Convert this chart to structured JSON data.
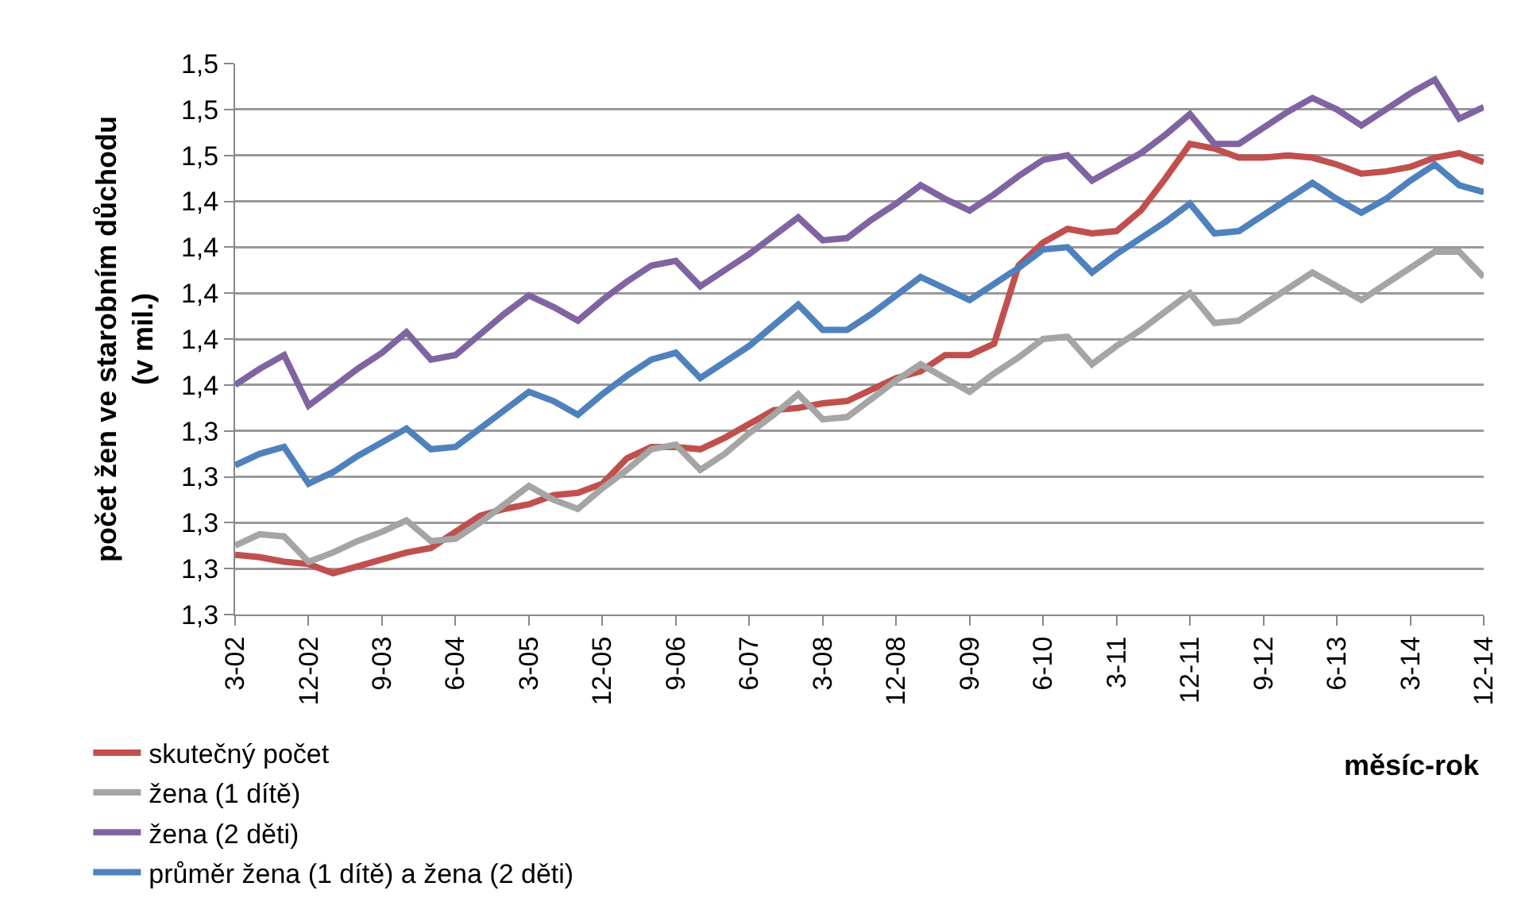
{
  "chart_data": {
    "type": "line",
    "xlabel": "měsíc-rok",
    "ylabel": "počet žen ve starobním důchodu\n(v mil.)",
    "categories": [
      "3-02",
      null,
      null,
      "12-02",
      null,
      null,
      "9-03",
      null,
      null,
      "6-04",
      null,
      null,
      "3-05",
      null,
      null,
      "12-05",
      null,
      null,
      "9-06",
      null,
      null,
      "6-07",
      null,
      null,
      "3-08",
      null,
      null,
      "12-08",
      null,
      null,
      "9-09",
      null,
      null,
      "6-10",
      null,
      null,
      "3-11",
      null,
      null,
      "12-11",
      null,
      null,
      "9-12",
      null,
      null,
      "6-13",
      null,
      null,
      "3-14",
      null,
      null,
      "12-14"
    ],
    "series": [
      {
        "name": "skutečný počet",
        "color": "#c0504d",
        "values": [
          1.286,
          1.285,
          1.283,
          1.282,
          1.278,
          1.281,
          1.284,
          1.287,
          1.289,
          1.296,
          1.303,
          1.306,
          1.308,
          1.312,
          1.313,
          1.317,
          1.328,
          1.333,
          1.333,
          1.332,
          1.337,
          1.343,
          1.349,
          1.35,
          1.352,
          1.353,
          1.358,
          1.363,
          1.366,
          1.373,
          1.373,
          1.378,
          1.412,
          1.422,
          1.428,
          1.426,
          1.427,
          1.436,
          1.45,
          1.465,
          1.463,
          1.459,
          1.459,
          1.46,
          1.459,
          1.456,
          1.452,
          1.453,
          1.455,
          1.459,
          1.461,
          1.457
        ]
      },
      {
        "name": "žena (1 dítě)",
        "color": "#a5a5a5",
        "values": [
          1.29,
          1.295,
          1.294,
          1.283,
          1.287,
          1.292,
          1.296,
          1.301,
          1.292,
          1.293,
          1.3,
          1.308,
          1.316,
          1.31,
          1.306,
          1.315,
          1.323,
          1.332,
          1.334,
          1.323,
          1.33,
          1.339,
          1.347,
          1.356,
          1.345,
          1.346,
          1.354,
          1.362,
          1.369,
          1.363,
          1.357,
          1.365,
          1.372,
          1.38,
          1.381,
          1.369,
          1.377,
          1.384,
          1.392,
          1.4,
          1.387,
          1.388,
          1.395,
          1.402,
          1.409,
          1.403,
          1.397,
          1.404,
          1.411,
          1.418,
          1.418,
          1.407
        ]
      },
      {
        "name": "žena (2 děti)",
        "color": "#8064a2",
        "values": [
          1.36,
          1.367,
          1.373,
          1.351,
          1.359,
          1.367,
          1.374,
          1.383,
          1.371,
          1.373,
          1.382,
          1.391,
          1.399,
          1.394,
          1.388,
          1.397,
          1.405,
          1.412,
          1.414,
          1.403,
          1.41,
          1.417,
          1.425,
          1.433,
          1.423,
          1.424,
          1.432,
          1.439,
          1.447,
          1.441,
          1.436,
          1.443,
          1.451,
          1.458,
          1.46,
          1.449,
          1.455,
          1.461,
          1.469,
          1.478,
          1.465,
          1.465,
          1.472,
          1.479,
          1.485,
          1.48,
          1.473,
          1.48,
          1.487,
          1.493,
          1.476,
          1.481
        ]
      },
      {
        "name": "průměr žena (1 dítě) a žena (2 děti)",
        "color": "#4f81bd",
        "values": [
          1.325,
          1.33,
          1.333,
          1.317,
          1.322,
          1.329,
          1.335,
          1.341,
          1.332,
          1.333,
          1.341,
          1.349,
          1.357,
          1.353,
          1.347,
          1.356,
          1.364,
          1.371,
          1.374,
          1.363,
          1.37,
          1.377,
          1.386,
          1.395,
          1.384,
          1.384,
          1.391,
          1.399,
          1.407,
          1.402,
          1.397,
          1.404,
          1.411,
          1.419,
          1.42,
          1.409,
          1.417,
          1.424,
          1.431,
          1.439,
          1.426,
          1.427,
          1.434,
          1.441,
          1.448,
          1.441,
          1.435,
          1.441,
          1.449,
          1.456,
          1.447,
          1.444
        ]
      }
    ],
    "ylim": [
      1.26,
      1.5
    ],
    "yticks": [
      {
        "value": 1.26,
        "label": "1,3"
      },
      {
        "value": 1.28,
        "label": "1,3"
      },
      {
        "value": 1.3,
        "label": "1,3"
      },
      {
        "value": 1.32,
        "label": "1,3"
      },
      {
        "value": 1.34,
        "label": "1,3"
      },
      {
        "value": 1.36,
        "label": "1,4"
      },
      {
        "value": 1.38,
        "label": "1,4"
      },
      {
        "value": 1.4,
        "label": "1,4"
      },
      {
        "value": 1.42,
        "label": "1,4"
      },
      {
        "value": 1.44,
        "label": "1,4"
      },
      {
        "value": 1.46,
        "label": "1,5"
      },
      {
        "value": 1.48,
        "label": "1,5"
      },
      {
        "value": 1.5,
        "label": "1,5"
      }
    ],
    "grid": "y",
    "legend": "bottom",
    "line_style": "solid"
  }
}
